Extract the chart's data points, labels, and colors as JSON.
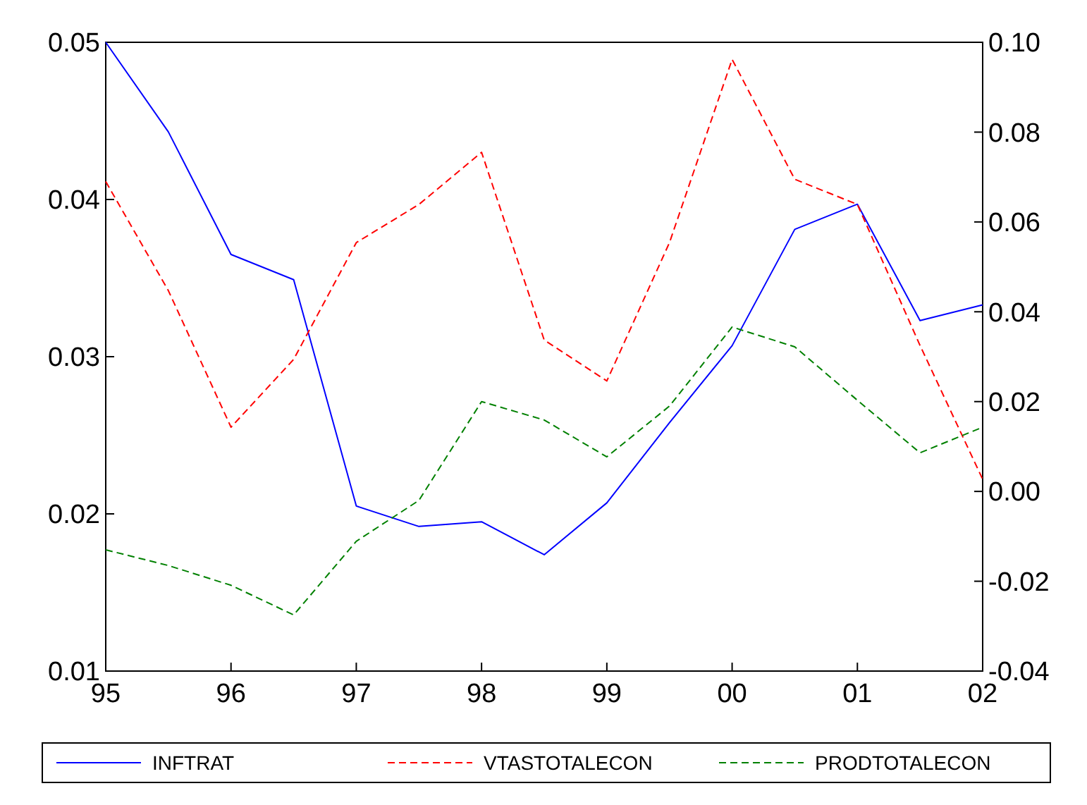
{
  "chart_data": {
    "type": "line",
    "x": [
      1995,
      1995.5,
      1996,
      1996.5,
      1997,
      1997.5,
      1998,
      1998.5,
      1999,
      1999.5,
      2000,
      2000.5,
      2001,
      2001.5,
      2002
    ],
    "xlim": [
      1995,
      2002
    ],
    "xticks": [
      {
        "value": 1995,
        "label": "95"
      },
      {
        "value": 1996,
        "label": "96"
      },
      {
        "value": 1997,
        "label": "97"
      },
      {
        "value": 1998,
        "label": "98"
      },
      {
        "value": 1999,
        "label": "99"
      },
      {
        "value": 2000,
        "label": "00"
      },
      {
        "value": 2001,
        "label": "01"
      },
      {
        "value": 2002,
        "label": "02"
      }
    ],
    "ylim": [
      0.01,
      0.05
    ],
    "yticks": [
      {
        "value": 0.01,
        "label": "0.01"
      },
      {
        "value": 0.02,
        "label": "0.02"
      },
      {
        "value": 0.03,
        "label": "0.03"
      },
      {
        "value": 0.04,
        "label": "0.04"
      },
      {
        "value": 0.05,
        "label": "0.05"
      }
    ],
    "y2lim": [
      -0.04,
      0.1
    ],
    "y2ticks": [
      {
        "value": -0.04,
        "label": "-0.04"
      },
      {
        "value": -0.02,
        "label": "-0.02"
      },
      {
        "value": 0,
        "label": "0.00"
      },
      {
        "value": 0.02,
        "label": "0.02"
      },
      {
        "value": 0.04,
        "label": "0.04"
      },
      {
        "value": 0.06,
        "label": "0.06"
      },
      {
        "value": 0.08,
        "label": "0.08"
      },
      {
        "value": 0.1,
        "label": "0.10"
      }
    ],
    "legend": "bottom",
    "grid": false,
    "marker": "none",
    "series": [
      {
        "name": "INFTRAT",
        "color": "#0000ff",
        "line_style": "solid",
        "values": [
          0.05,
          0.0443,
          0.0365,
          0.0349,
          0.0205,
          0.0192,
          0.0195,
          0.0174,
          0.0207,
          0.0258,
          0.0307,
          0.0381,
          0.0397,
          0.0323,
          0.0333
        ]
      },
      {
        "name": "VTASTOTALECON",
        "color": "#ff0000",
        "line_style": "dashed",
        "axis": "y2",
        "values": [
          0.069,
          0.0447,
          0.0143,
          0.0294,
          0.0554,
          0.0639,
          0.0755,
          0.0337,
          0.0246,
          0.0554,
          0.0962,
          0.0695,
          0.0639,
          0.0325,
          0.0027
        ]
      },
      {
        "name": "PRODTOTALECON",
        "color": "#008000",
        "line_style": "dashed",
        "axis": "y2",
        "values": [
          -0.013,
          -0.0165,
          -0.0209,
          -0.0275,
          -0.0111,
          -0.002,
          0.02,
          0.0159,
          0.0077,
          0.019,
          0.0366,
          0.0322,
          0.0203,
          0.0086,
          0.0143
        ]
      }
    ]
  }
}
